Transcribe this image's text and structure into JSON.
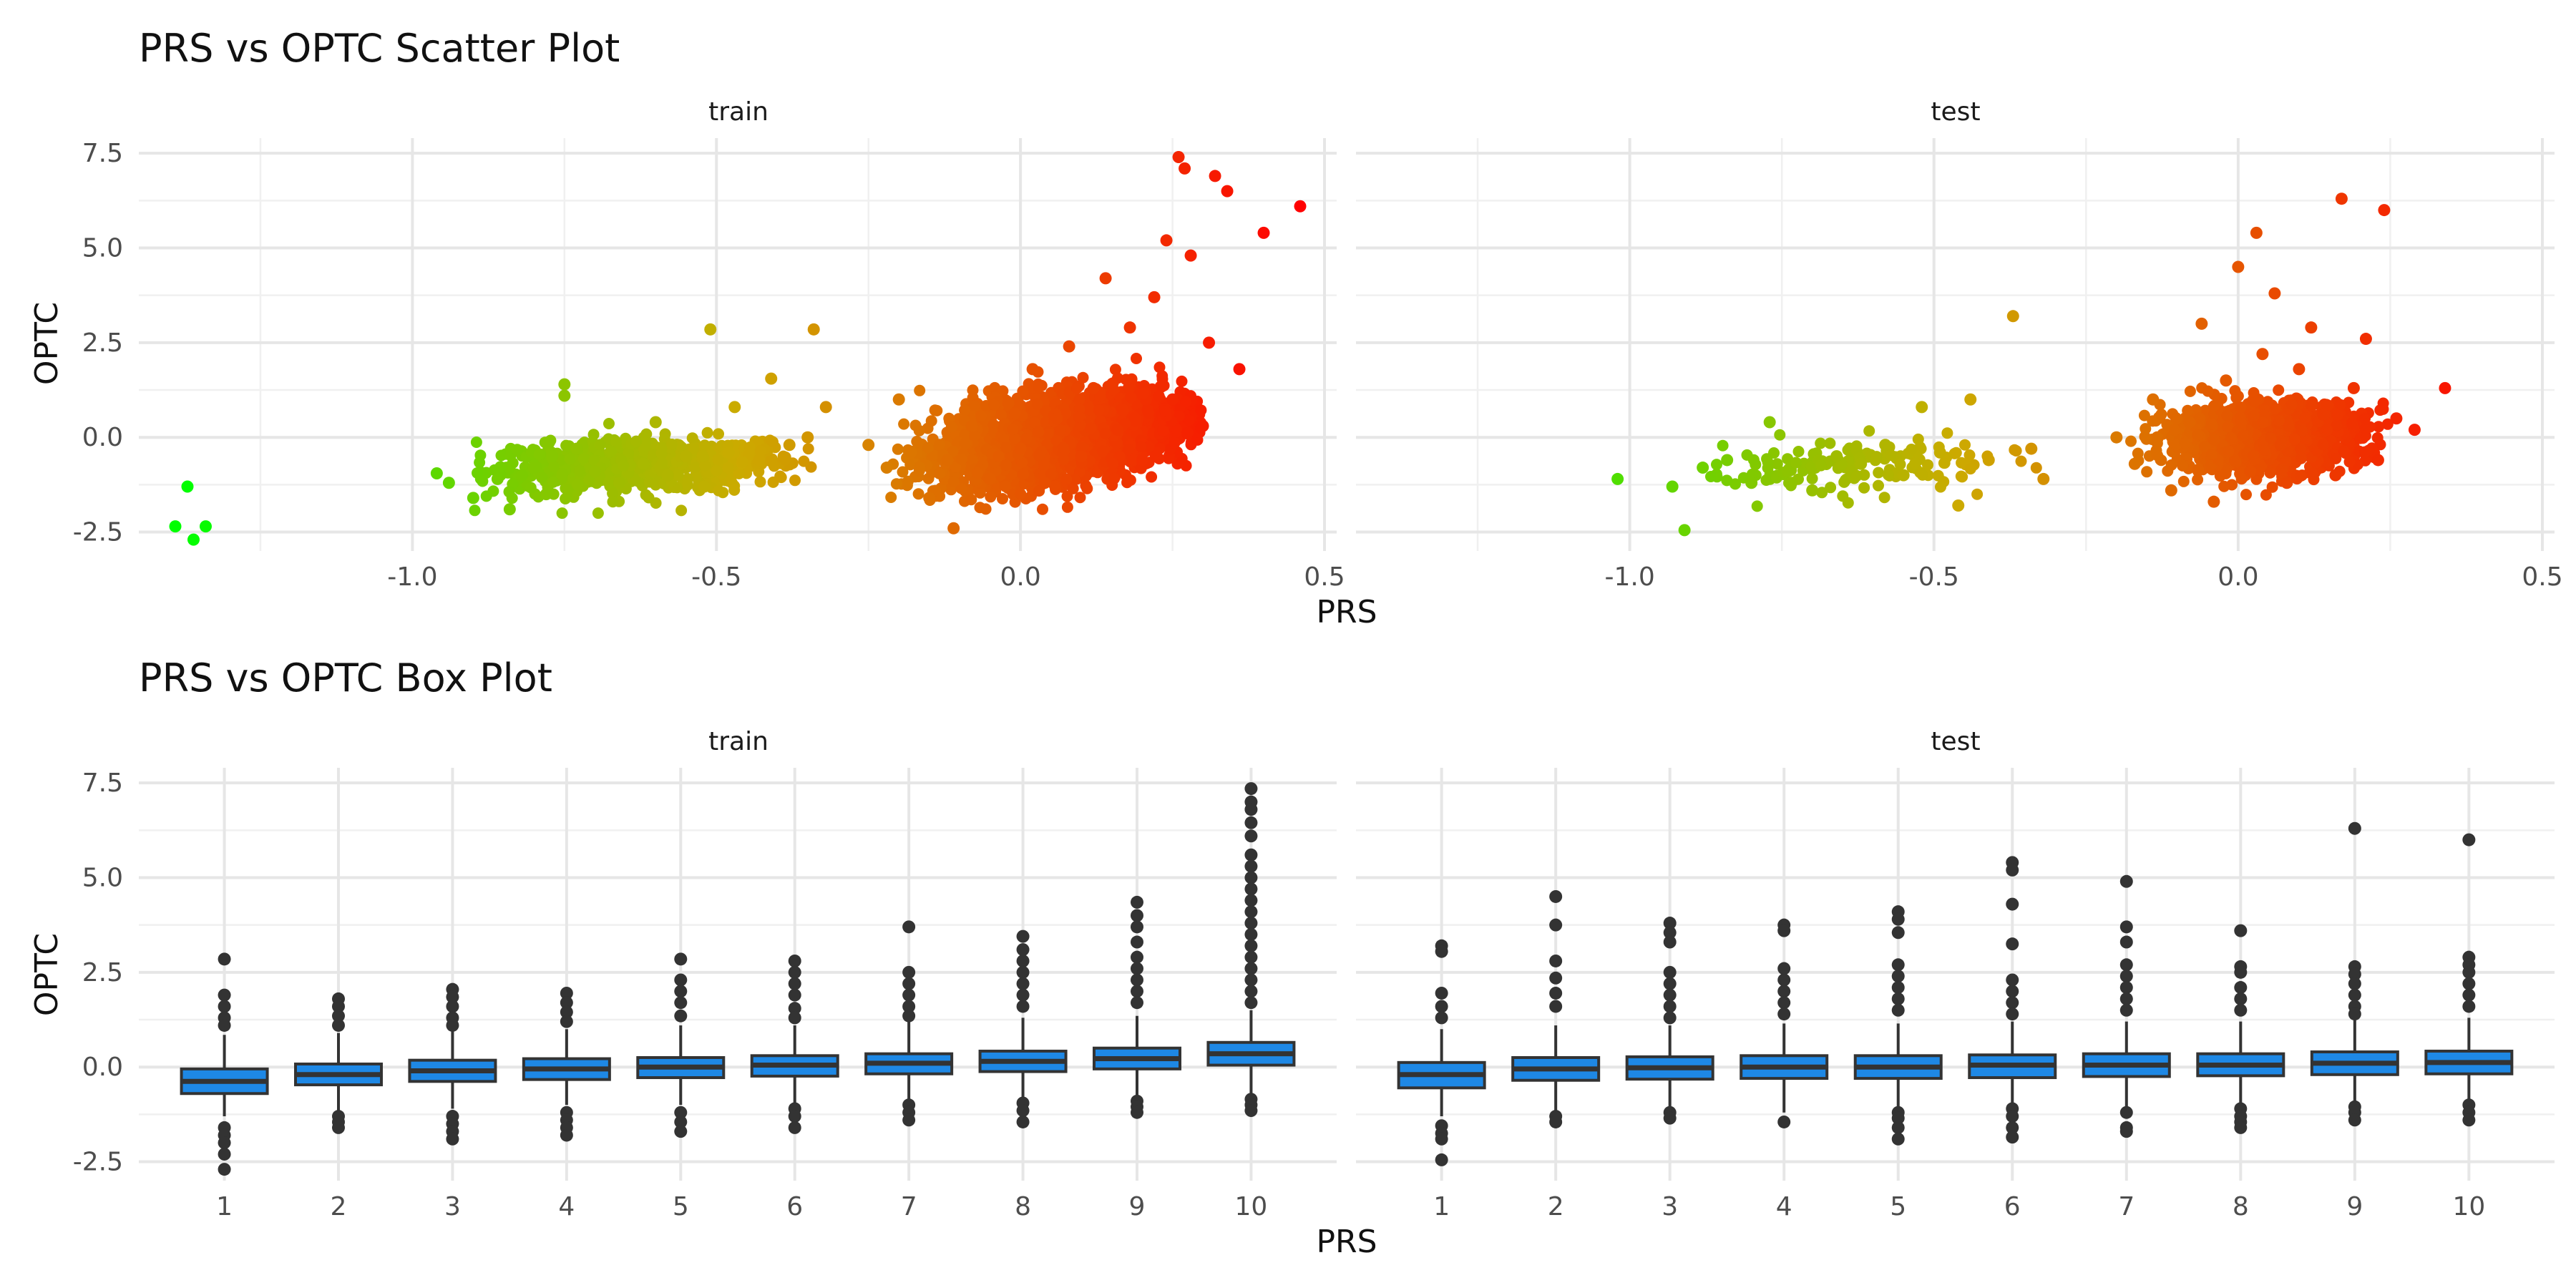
{
  "chart_data": [
    {
      "type": "scatter",
      "title": "PRS vs OPTC Scatter Plot",
      "xlabel": "PRS",
      "ylabel": "OPTC",
      "facets": [
        "train",
        "test"
      ],
      "xlim": [
        -1.45,
        0.52
      ],
      "ylim": [
        -3.0,
        7.9
      ],
      "x_ticks": [
        -1.0,
        -0.5,
        0.0,
        0.5
      ],
      "x_tick_labels": [
        "-1.0",
        "-0.5",
        "0.0",
        "0.5"
      ],
      "y_ticks": [
        -2.5,
        0.0,
        2.5,
        5.0,
        7.5
      ],
      "y_tick_labels": [
        "-2.5",
        "0.0",
        "2.5",
        "5.0",
        "7.5"
      ],
      "grid": true,
      "color_scale": {
        "low": "#00ff00",
        "mid": "#ccaa00",
        "high": "#ff0000",
        "domain": [
          -1.38,
          0.46
        ]
      },
      "series": [
        {
          "facet": "train",
          "points": [
            [
              -1.37,
              -1.3
            ],
            [
              -1.39,
              -2.35
            ],
            [
              -1.36,
              -2.7
            ],
            [
              -1.34,
              -2.35
            ],
            [
              -0.96,
              -0.95
            ],
            [
              -0.94,
              -1.2
            ],
            [
              -0.9,
              -1.6
            ],
            [
              -0.86,
              -1.1
            ],
            [
              -0.84,
              -1.9
            ],
            [
              -0.82,
              -1.0
            ],
            [
              -0.8,
              -0.8
            ],
            [
              -0.78,
              -1.5
            ],
            [
              -0.77,
              -0.5
            ],
            [
              -0.75,
              1.1
            ],
            [
              -0.75,
              1.4
            ],
            [
              -0.73,
              -0.3
            ],
            [
              -0.7,
              -0.9
            ],
            [
              -0.66,
              -1.2
            ],
            [
              -0.62,
              -0.7
            ],
            [
              -0.6,
              0.4
            ],
            [
              -0.58,
              -1.0
            ],
            [
              -0.55,
              -0.5
            ],
            [
              -0.52,
              -1.3
            ],
            [
              -0.51,
              2.85
            ],
            [
              -0.48,
              -0.4
            ],
            [
              -0.47,
              0.8
            ],
            [
              -0.43,
              -0.6
            ],
            [
              -0.41,
              1.55
            ],
            [
              -0.38,
              -0.2
            ],
            [
              -0.35,
              0.0
            ],
            [
              -0.34,
              2.85
            ],
            [
              -0.32,
              0.8
            ],
            [
              -0.25,
              -0.2
            ],
            [
              -0.22,
              -0.8
            ],
            [
              -0.2,
              1.0
            ],
            [
              -0.18,
              -0.4
            ],
            [
              -0.15,
              -1.6
            ],
            [
              -0.12,
              -0.6
            ],
            [
              -0.11,
              -2.4
            ],
            [
              -0.08,
              0.3
            ],
            [
              -0.05,
              -1.1
            ],
            [
              -0.02,
              0.9
            ],
            [
              0.0,
              -0.3
            ],
            [
              0.02,
              1.8
            ],
            [
              0.04,
              -1.2
            ],
            [
              0.06,
              0.5
            ],
            [
              0.08,
              2.4
            ],
            [
              0.1,
              -0.5
            ],
            [
              0.12,
              1.3
            ],
            [
              0.14,
              4.2
            ],
            [
              0.16,
              0.2
            ],
            [
              0.18,
              2.9
            ],
            [
              0.2,
              -0.6
            ],
            [
              0.22,
              3.7
            ],
            [
              0.24,
              5.2
            ],
            [
              0.25,
              1.0
            ],
            [
              0.26,
              7.4
            ],
            [
              0.27,
              7.1
            ],
            [
              0.28,
              4.8
            ],
            [
              0.3,
              0.3
            ],
            [
              0.31,
              2.5
            ],
            [
              0.32,
              6.9
            ],
            [
              0.34,
              6.5
            ],
            [
              0.36,
              1.8
            ],
            [
              0.4,
              5.4
            ],
            [
              0.46,
              6.1
            ]
          ]
        },
        {
          "facet": "test",
          "points": [
            [
              -1.02,
              -1.1
            ],
            [
              -0.93,
              -1.3
            ],
            [
              -0.91,
              -2.45
            ],
            [
              -0.88,
              -0.8
            ],
            [
              -0.84,
              -0.6
            ],
            [
              -0.8,
              -1.2
            ],
            [
              -0.77,
              0.4
            ],
            [
              -0.74,
              -0.9
            ],
            [
              -0.7,
              -1.4
            ],
            [
              -0.66,
              -0.5
            ],
            [
              -0.62,
              -0.7
            ],
            [
              -0.58,
              -0.2
            ],
            [
              -0.55,
              -1.0
            ],
            [
              -0.52,
              0.8
            ],
            [
              -0.49,
              -0.4
            ],
            [
              -0.46,
              -1.8
            ],
            [
              -0.44,
              1.0
            ],
            [
              -0.41,
              -0.6
            ],
            [
              -0.37,
              3.2
            ],
            [
              -0.34,
              -0.3
            ],
            [
              -0.32,
              -1.1
            ],
            [
              -0.2,
              0.0
            ],
            [
              -0.17,
              -0.7
            ],
            [
              -0.14,
              1.0
            ],
            [
              -0.11,
              -1.4
            ],
            [
              -0.08,
              0.4
            ],
            [
              -0.06,
              3.0
            ],
            [
              -0.04,
              -1.7
            ],
            [
              -0.02,
              1.5
            ],
            [
              0.0,
              4.5
            ],
            [
              0.02,
              -0.9
            ],
            [
              0.03,
              5.4
            ],
            [
              0.04,
              2.2
            ],
            [
              0.06,
              3.8
            ],
            [
              0.08,
              -1.2
            ],
            [
              0.1,
              1.8
            ],
            [
              0.12,
              2.9
            ],
            [
              0.14,
              0.6
            ],
            [
              0.16,
              -1.0
            ],
            [
              0.17,
              6.3
            ],
            [
              0.19,
              1.3
            ],
            [
              0.21,
              2.6
            ],
            [
              0.23,
              -0.6
            ],
            [
              0.24,
              6.0
            ],
            [
              0.26,
              0.5
            ],
            [
              0.29,
              0.2
            ],
            [
              0.34,
              1.3
            ]
          ]
        }
      ]
    },
    {
      "type": "box",
      "title": "PRS vs OPTC Box Plot",
      "xlabel": "PRS",
      "ylabel": "OPTC",
      "facets": [
        "train",
        "test"
      ],
      "categories": [
        "1",
        "2",
        "3",
        "4",
        "5",
        "6",
        "7",
        "8",
        "9",
        "10"
      ],
      "ylim": [
        -3.0,
        7.9
      ],
      "y_ticks": [
        -2.5,
        0.0,
        2.5,
        5.0,
        7.5
      ],
      "y_tick_labels": [
        "-2.5",
        "0.0",
        "2.5",
        "5.0",
        "7.5"
      ],
      "grid": true,
      "fill": "#1e88e5",
      "outline": "#333333",
      "series": [
        {
          "facet": "train",
          "boxes": [
            {
              "lw": -1.3,
              "q1": -0.7,
              "med": -0.38,
              "q3": -0.05,
              "uw": 0.85,
              "outliers": [
                2.85,
                1.9,
                1.6,
                1.3,
                1.1,
                -1.6,
                -1.8,
                -2.0,
                -2.3,
                -2.7
              ]
            },
            {
              "lw": -1.2,
              "q1": -0.47,
              "med": -0.2,
              "q3": 0.08,
              "uw": 0.9,
              "outliers": [
                1.8,
                1.6,
                1.35,
                1.1,
                -1.3,
                -1.45,
                -1.6
              ]
            },
            {
              "lw": -1.1,
              "q1": -0.38,
              "med": -0.1,
              "q3": 0.18,
              "uw": 1.0,
              "outliers": [
                2.05,
                1.85,
                1.6,
                1.3,
                1.1,
                -1.3,
                -1.5,
                -1.7,
                -1.9
              ]
            },
            {
              "lw": -1.0,
              "q1": -0.33,
              "med": -0.05,
              "q3": 0.22,
              "uw": 1.0,
              "outliers": [
                1.95,
                1.7,
                1.45,
                1.2,
                -1.2,
                -1.4,
                -1.6,
                -1.8
              ]
            },
            {
              "lw": -1.0,
              "q1": -0.28,
              "med": 0.0,
              "q3": 0.25,
              "uw": 1.1,
              "outliers": [
                2.85,
                2.3,
                2.0,
                1.7,
                1.35,
                -1.2,
                -1.45,
                -1.7
              ]
            },
            {
              "lw": -1.0,
              "q1": -0.24,
              "med": 0.05,
              "q3": 0.3,
              "uw": 1.1,
              "outliers": [
                2.8,
                2.5,
                2.2,
                1.9,
                1.55,
                1.3,
                -1.1,
                -1.3,
                -1.6
              ]
            },
            {
              "lw": -1.0,
              "q1": -0.18,
              "med": 0.1,
              "q3": 0.35,
              "uw": 1.2,
              "outliers": [
                3.7,
                2.5,
                2.2,
                1.9,
                1.6,
                1.35,
                -1.0,
                -1.2,
                -1.4
              ]
            },
            {
              "lw": -0.9,
              "q1": -0.12,
              "med": 0.15,
              "q3": 0.42,
              "uw": 1.3,
              "outliers": [
                3.45,
                3.1,
                2.8,
                2.5,
                2.2,
                1.9,
                1.6,
                -0.95,
                -1.15,
                -1.45
              ]
            },
            {
              "lw": -0.85,
              "q1": -0.05,
              "med": 0.22,
              "q3": 0.5,
              "uw": 1.35,
              "outliers": [
                4.35,
                4.0,
                3.7,
                3.3,
                2.9,
                2.6,
                2.3,
                2.0,
                1.7,
                -0.9,
                -1.05,
                -1.2
              ]
            },
            {
              "lw": -0.7,
              "q1": 0.05,
              "med": 0.35,
              "q3": 0.65,
              "uw": 1.5,
              "outliers": [
                7.35,
                7.0,
                6.8,
                6.45,
                6.1,
                5.6,
                5.3,
                5.0,
                4.7,
                4.4,
                4.1,
                3.8,
                3.5,
                3.2,
                2.9,
                2.6,
                2.3,
                2.0,
                1.7,
                -0.85,
                -1.0,
                -1.15
              ]
            }
          ]
        },
        {
          "facet": "test",
          "boxes": [
            {
              "lw": -1.3,
              "q1": -0.55,
              "med": -0.2,
              "q3": 0.12,
              "uw": 1.0,
              "outliers": [
                3.2,
                3.05,
                1.95,
                1.6,
                1.3,
                -1.55,
                -1.75,
                -1.9,
                -2.45
              ]
            },
            {
              "lw": -1.2,
              "q1": -0.35,
              "med": -0.05,
              "q3": 0.25,
              "uw": 1.1,
              "outliers": [
                4.5,
                3.75,
                2.8,
                2.35,
                1.95,
                1.6,
                -1.3,
                -1.45
              ]
            },
            {
              "lw": -1.2,
              "q1": -0.32,
              "med": -0.02,
              "q3": 0.27,
              "uw": 1.1,
              "outliers": [
                3.8,
                3.55,
                3.3,
                2.5,
                2.2,
                1.9,
                1.6,
                1.3,
                -1.2,
                -1.35
              ]
            },
            {
              "lw": -1.2,
              "q1": -0.3,
              "med": 0.0,
              "q3": 0.3,
              "uw": 1.15,
              "outliers": [
                3.75,
                3.6,
                2.6,
                2.3,
                2.0,
                1.7,
                1.4,
                -1.45
              ]
            },
            {
              "lw": -1.1,
              "q1": -0.3,
              "med": 0.0,
              "q3": 0.3,
              "uw": 1.15,
              "outliers": [
                4.1,
                3.9,
                3.55,
                2.7,
                2.4,
                2.1,
                1.8,
                1.5,
                -1.2,
                -1.35,
                -1.6,
                -1.9
              ]
            },
            {
              "lw": -1.1,
              "q1": -0.28,
              "med": 0.05,
              "q3": 0.32,
              "uw": 1.2,
              "outliers": [
                5.4,
                5.2,
                4.3,
                3.25,
                2.3,
                2.0,
                1.7,
                1.4,
                -1.1,
                -1.3,
                -1.6,
                -1.85
              ]
            },
            {
              "lw": -1.05,
              "q1": -0.25,
              "med": 0.05,
              "q3": 0.35,
              "uw": 1.2,
              "outliers": [
                4.9,
                3.7,
                3.3,
                2.7,
                2.4,
                2.1,
                1.8,
                1.5,
                -1.2,
                -1.6,
                -1.7
              ]
            },
            {
              "lw": -1.05,
              "q1": -0.23,
              "med": 0.05,
              "q3": 0.35,
              "uw": 1.2,
              "outliers": [
                3.6,
                2.65,
                2.5,
                2.1,
                1.8,
                1.5,
                -1.1,
                -1.3,
                -1.45,
                -1.6
              ]
            },
            {
              "lw": -1.0,
              "q1": -0.2,
              "med": 0.1,
              "q3": 0.4,
              "uw": 1.25,
              "outliers": [
                6.3,
                2.65,
                2.45,
                2.2,
                1.9,
                1.6,
                1.4,
                -1.05,
                -1.2,
                -1.4
              ]
            },
            {
              "lw": -1.0,
              "q1": -0.18,
              "med": 0.12,
              "q3": 0.42,
              "uw": 1.3,
              "outliers": [
                6.0,
                2.9,
                2.7,
                2.5,
                2.2,
                1.9,
                1.6,
                -1.0,
                -1.2,
                -1.4
              ]
            }
          ]
        }
      ]
    }
  ]
}
